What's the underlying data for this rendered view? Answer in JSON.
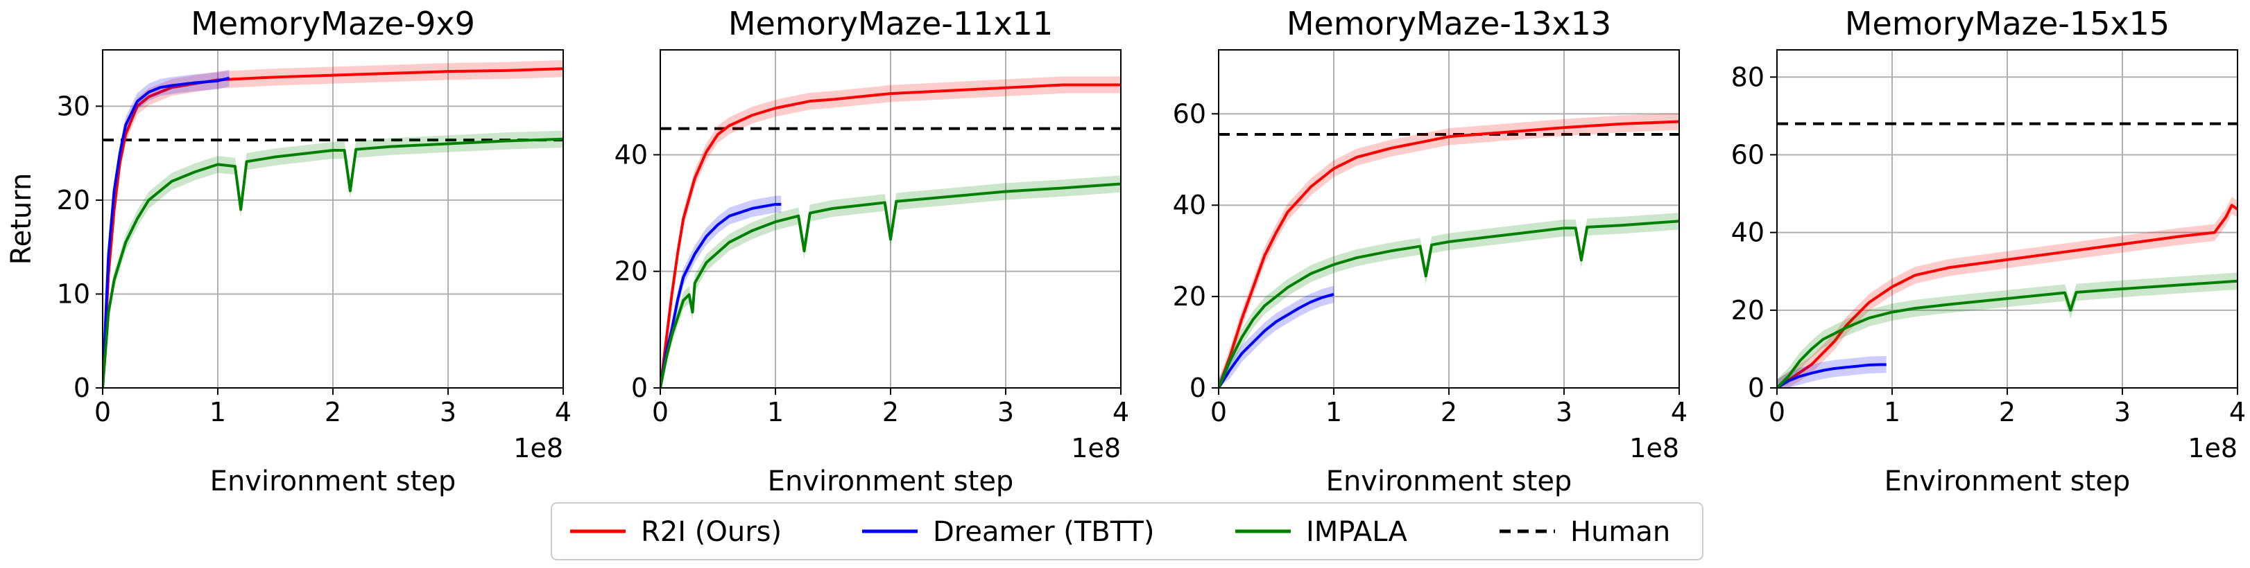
{
  "figure": {
    "legend": {
      "placement": "bottom-center",
      "entries": [
        {
          "label": "R2I (Ours)",
          "color": "#ff0000",
          "style": "solid"
        },
        {
          "label": "Dreamer (TBTT)",
          "color": "#0000ff",
          "style": "solid"
        },
        {
          "label": "IMPALA",
          "color": "#008000",
          "style": "solid"
        },
        {
          "label": "Human",
          "color": "#000000",
          "style": "dashed"
        }
      ]
    }
  },
  "chart_data": [
    {
      "type": "line",
      "title": "MemoryMaze-9x9",
      "xlabel": "Environment step",
      "ylabel": "Return",
      "x_offset_label": "1e8",
      "xlim": [
        0,
        4
      ],
      "ylim": [
        0,
        36
      ],
      "xticks": [
        0,
        1,
        2,
        3,
        4
      ],
      "yticks": [
        0,
        10,
        20,
        30
      ],
      "grid": true,
      "human": 26.4,
      "series": [
        {
          "name": "R2I (Ours)",
          "color": "#ff0000",
          "x": [
            0,
            0.05,
            0.1,
            0.15,
            0.2,
            0.3,
            0.4,
            0.6,
            0.8,
            1.0,
            1.5,
            2.0,
            2.5,
            3.0,
            3.5,
            4.0
          ],
          "y": [
            0,
            12,
            19,
            24,
            27,
            30,
            31,
            32,
            32.4,
            32.8,
            33.1,
            33.3,
            33.5,
            33.7,
            33.8,
            34
          ]
        },
        {
          "name": "Dreamer (TBTT)",
          "color": "#0000ff",
          "x": [
            0,
            0.05,
            0.1,
            0.15,
            0.2,
            0.3,
            0.4,
            0.5,
            0.6,
            0.8,
            1.0,
            1.1
          ],
          "y": [
            0,
            14,
            21,
            25,
            28,
            30.5,
            31.5,
            32,
            32.2,
            32.5,
            32.7,
            33
          ]
        },
        {
          "name": "IMPALA",
          "color": "#008000",
          "x": [
            0,
            0.05,
            0.1,
            0.2,
            0.3,
            0.4,
            0.6,
            0.8,
            1.0,
            1.15,
            1.2,
            1.25,
            1.5,
            2.0,
            2.1,
            2.15,
            2.2,
            2.5,
            3.0,
            3.5,
            4.0
          ],
          "y": [
            0,
            8,
            11.5,
            15.5,
            18,
            20,
            22,
            23,
            23.8,
            23.6,
            19,
            24.1,
            24.6,
            25.3,
            25.3,
            21,
            25.4,
            25.7,
            26,
            26.3,
            26.5
          ]
        }
      ]
    },
    {
      "type": "line",
      "title": "MemoryMaze-11x11",
      "xlabel": "Environment step",
      "ylabel": "",
      "x_offset_label": "1e8",
      "xlim": [
        0,
        4
      ],
      "ylim": [
        0,
        58
      ],
      "xticks": [
        0,
        1,
        2,
        3,
        4
      ],
      "yticks": [
        0,
        20,
        40
      ],
      "grid": true,
      "human": 44.5,
      "series": [
        {
          "name": "R2I (Ours)",
          "color": "#ff0000",
          "x": [
            0,
            0.05,
            0.1,
            0.15,
            0.2,
            0.3,
            0.4,
            0.5,
            0.6,
            0.8,
            1.0,
            1.3,
            1.5,
            2.0,
            2.5,
            3.0,
            3.5,
            4.0
          ],
          "y": [
            0,
            8,
            16,
            23,
            29,
            36,
            40.5,
            43.5,
            45,
            46.8,
            48,
            49.2,
            49.5,
            50.5,
            51,
            51.5,
            52,
            52
          ]
        },
        {
          "name": "Dreamer (TBTT)",
          "color": "#0000ff",
          "x": [
            0,
            0.05,
            0.1,
            0.15,
            0.2,
            0.3,
            0.4,
            0.5,
            0.6,
            0.8,
            1.0,
            1.05
          ],
          "y": [
            0,
            6,
            10,
            15,
            19,
            23,
            26,
            28,
            29.5,
            30.8,
            31.5,
            31.5
          ]
        },
        {
          "name": "IMPALA",
          "color": "#008000",
          "x": [
            0,
            0.05,
            0.1,
            0.15,
            0.2,
            0.25,
            0.28,
            0.3,
            0.4,
            0.6,
            0.8,
            1.0,
            1.2,
            1.25,
            1.3,
            1.5,
            1.95,
            2.0,
            2.05,
            2.5,
            3.0,
            3.5,
            4.0
          ],
          "y": [
            0,
            5,
            9,
            12,
            15,
            16,
            13,
            18,
            21.5,
            25,
            27,
            28.5,
            29.5,
            23.5,
            30,
            30.8,
            31.8,
            25.5,
            32,
            32.8,
            33.7,
            34.3,
            35
          ]
        }
      ]
    },
    {
      "type": "line",
      "title": "MemoryMaze-13x13",
      "xlabel": "Environment step",
      "ylabel": "",
      "x_offset_label": "1e8",
      "xlim": [
        0,
        4
      ],
      "ylim": [
        0,
        74
      ],
      "xticks": [
        0,
        1,
        2,
        3,
        4
      ],
      "yticks": [
        0,
        20,
        40,
        60
      ],
      "grid": true,
      "human": 55.5,
      "series": [
        {
          "name": "R2I (Ours)",
          "color": "#ff0000",
          "x": [
            0,
            0.1,
            0.2,
            0.3,
            0.4,
            0.5,
            0.6,
            0.8,
            1.0,
            1.2,
            1.5,
            2.0,
            2.5,
            3.0,
            3.5,
            4.0
          ],
          "y": [
            0,
            7,
            15,
            22,
            29,
            34,
            38.5,
            44,
            48,
            50.5,
            52.5,
            55,
            56,
            57,
            57.8,
            58.3
          ]
        },
        {
          "name": "Dreamer (TBTT)",
          "color": "#0000ff",
          "x": [
            0,
            0.1,
            0.2,
            0.3,
            0.4,
            0.5,
            0.6,
            0.7,
            0.8,
            0.9,
            1.0
          ],
          "y": [
            0,
            4,
            7.5,
            10,
            12.5,
            14.5,
            16,
            17.5,
            18.8,
            19.8,
            20.5
          ]
        },
        {
          "name": "IMPALA",
          "color": "#008000",
          "x": [
            0,
            0.1,
            0.2,
            0.3,
            0.4,
            0.6,
            0.8,
            1.0,
            1.2,
            1.5,
            1.75,
            1.8,
            1.85,
            2.0,
            2.5,
            3.0,
            3.1,
            3.15,
            3.2,
            3.5,
            4.0
          ],
          "y": [
            0,
            6,
            11,
            15,
            18,
            22,
            25,
            27,
            28.5,
            30,
            31,
            24.5,
            31.3,
            32,
            33.5,
            35,
            35,
            28,
            35.2,
            35.6,
            36.5
          ]
        }
      ]
    },
    {
      "type": "line",
      "title": "MemoryMaze-15x15",
      "xlabel": "Environment step",
      "ylabel": "",
      "x_offset_label": "1e8",
      "xlim": [
        0,
        4
      ],
      "ylim": [
        0,
        87
      ],
      "xticks": [
        0,
        1,
        2,
        3,
        4
      ],
      "yticks": [
        0,
        20,
        40,
        60,
        80
      ],
      "grid": true,
      "human": 68,
      "series": [
        {
          "name": "R2I (Ours)",
          "color": "#ff0000",
          "x": [
            0,
            0.1,
            0.2,
            0.3,
            0.4,
            0.5,
            0.6,
            0.8,
            1.0,
            1.2,
            1.5,
            2.0,
            2.5,
            3.0,
            3.5,
            3.8,
            3.9,
            3.95,
            4.0
          ],
          "y": [
            0,
            2,
            4,
            6,
            9,
            12,
            16,
            22,
            26,
            29,
            31,
            33,
            35,
            37,
            39,
            40,
            44,
            47,
            46
          ]
        },
        {
          "name": "Dreamer (TBTT)",
          "color": "#0000ff",
          "x": [
            0,
            0.1,
            0.2,
            0.3,
            0.4,
            0.5,
            0.6,
            0.7,
            0.8,
            0.9,
            0.95
          ],
          "y": [
            0,
            1.8,
            3,
            3.8,
            4.5,
            5,
            5.3,
            5.6,
            5.9,
            6,
            6
          ]
        },
        {
          "name": "IMPALA",
          "color": "#008000",
          "x": [
            0,
            0.1,
            0.2,
            0.3,
            0.4,
            0.6,
            0.8,
            1.0,
            1.2,
            1.5,
            2.0,
            2.5,
            2.55,
            2.6,
            3.0,
            3.5,
            4.0
          ],
          "y": [
            0,
            3,
            7,
            10,
            12.5,
            15.5,
            18,
            19.5,
            20.5,
            21.5,
            23,
            24.5,
            20,
            24.6,
            25.5,
            26.5,
            27.5
          ]
        }
      ]
    }
  ]
}
